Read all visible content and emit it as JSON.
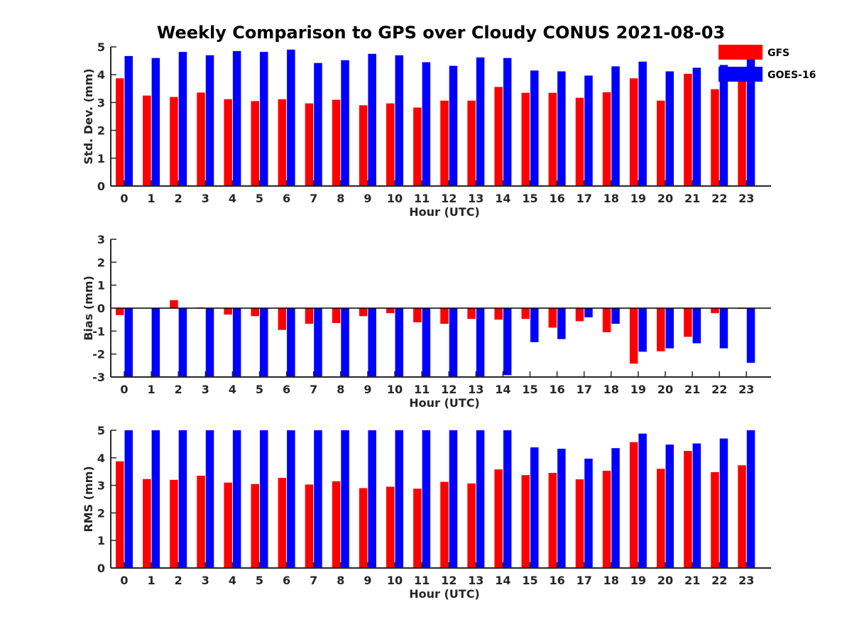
{
  "figure": {
    "title": "Weekly Comparison to GPS over Cloudy CONUS 2021-08-03"
  },
  "colors": {
    "GFS": "#ff0000",
    "GOES-16": "#0000ff",
    "axis": "#262626"
  },
  "legend": {
    "placement": "top-right",
    "entries": [
      "GFS",
      "GOES-16"
    ]
  },
  "chart_data": [
    {
      "type": "bar",
      "title": "",
      "xlabel": "Hour (UTC)",
      "ylabel": "Std. Dev. (mm)",
      "ylim": [
        0,
        5
      ],
      "yticks": [
        0,
        1,
        2,
        3,
        4,
        5
      ],
      "grid": false,
      "categories": [
        "0",
        "1",
        "2",
        "3",
        "4",
        "5",
        "6",
        "7",
        "8",
        "9",
        "10",
        "11",
        "12",
        "13",
        "14",
        "15",
        "16",
        "17",
        "18",
        "19",
        "20",
        "21",
        "22",
        "23"
      ],
      "series": [
        {
          "name": "GFS",
          "values": [
            3.87,
            3.25,
            3.2,
            3.36,
            3.12,
            3.05,
            3.12,
            2.97,
            3.1,
            2.9,
            2.97,
            2.82,
            3.07,
            3.07,
            3.56,
            3.35,
            3.35,
            3.17,
            3.37,
            3.87,
            3.07,
            4.03,
            3.48,
            3.9
          ]
        },
        {
          "name": "GOES-16",
          "values": [
            4.67,
            4.6,
            4.82,
            4.7,
            4.85,
            4.82,
            4.9,
            4.42,
            4.52,
            4.75,
            4.7,
            4.45,
            4.32,
            4.62,
            4.6,
            4.15,
            4.12,
            3.97,
            4.3,
            4.47,
            4.12,
            4.25,
            4.35,
            4.7
          ]
        }
      ]
    },
    {
      "type": "bar",
      "title": "",
      "xlabel": "Hour (UTC)",
      "ylabel": "Bias (mm)",
      "ylim": [
        -3,
        3
      ],
      "yticks": [
        -3,
        -2,
        -1,
        0,
        1,
        2,
        3
      ],
      "grid": false,
      "zero_line": true,
      "categories": [
        "0",
        "1",
        "2",
        "3",
        "4",
        "5",
        "6",
        "7",
        "8",
        "9",
        "10",
        "11",
        "12",
        "13",
        "14",
        "15",
        "16",
        "17",
        "18",
        "19",
        "20",
        "21",
        "22",
        "23"
      ],
      "series": [
        {
          "name": "GFS",
          "values": [
            -0.3,
            0.0,
            0.35,
            0.03,
            -0.28,
            -0.35,
            -0.95,
            -0.68,
            -0.65,
            -0.35,
            -0.22,
            -0.62,
            -0.68,
            -0.47,
            -0.5,
            -0.47,
            -0.85,
            -0.57,
            -1.05,
            -2.42,
            -1.88,
            -1.25,
            -0.22,
            -0.03
          ]
        },
        {
          "name": "GOES-16",
          "values": [
            -3.0,
            -3.0,
            -3.0,
            -3.0,
            -3.0,
            -3.0,
            -3.0,
            -3.0,
            -3.0,
            -3.0,
            -3.0,
            -3.0,
            -3.0,
            -3.0,
            -2.92,
            -1.48,
            -1.35,
            -0.4,
            -0.68,
            -1.9,
            -1.75,
            -1.53,
            -1.75,
            -2.38
          ]
        }
      ]
    },
    {
      "type": "bar",
      "title": "",
      "xlabel": "Hour (UTC)",
      "ylabel": "RMS (mm)",
      "ylim": [
        0,
        5
      ],
      "yticks": [
        0,
        1,
        2,
        3,
        4,
        5
      ],
      "grid": false,
      "categories": [
        "0",
        "1",
        "2",
        "3",
        "4",
        "5",
        "6",
        "7",
        "8",
        "9",
        "10",
        "11",
        "12",
        "13",
        "14",
        "15",
        "16",
        "17",
        "18",
        "19",
        "20",
        "21",
        "22",
        "23"
      ],
      "series": [
        {
          "name": "GFS",
          "values": [
            3.87,
            3.23,
            3.2,
            3.35,
            3.1,
            3.05,
            3.27,
            3.03,
            3.15,
            2.9,
            2.95,
            2.88,
            3.13,
            3.07,
            3.58,
            3.37,
            3.45,
            3.22,
            3.53,
            4.57,
            3.6,
            4.25,
            3.48,
            3.73
          ]
        },
        {
          "name": "GOES-16",
          "values": [
            5.0,
            5.0,
            5.0,
            5.0,
            5.0,
            5.0,
            5.0,
            5.0,
            5.0,
            5.0,
            5.0,
            5.0,
            5.0,
            5.0,
            5.0,
            4.38,
            4.33,
            3.97,
            4.35,
            4.88,
            4.48,
            4.52,
            4.7,
            5.0
          ]
        }
      ]
    }
  ]
}
